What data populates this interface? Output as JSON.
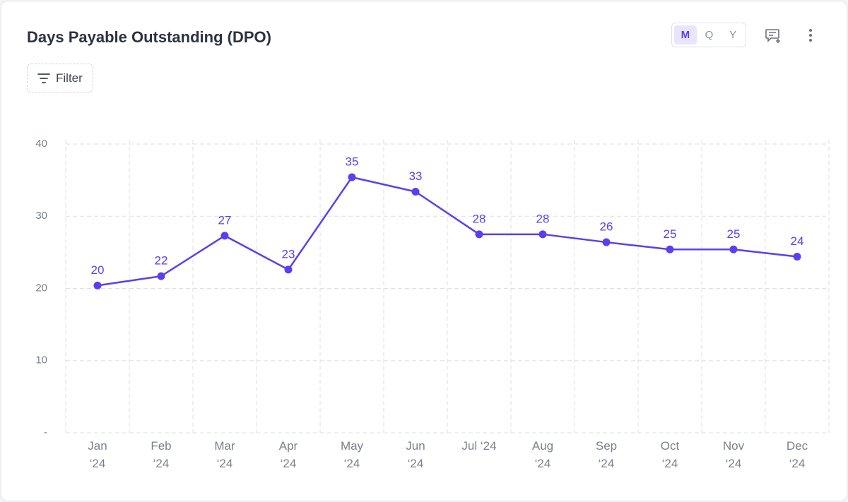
{
  "header": {
    "title": "Days Payable Outstanding (DPO)",
    "filter": "Filter",
    "periods": [
      "M",
      "Q",
      "Y"
    ]
  },
  "chart_data": {
    "type": "line",
    "categories": [
      "Jan ‘24",
      "Feb ‘24",
      "Mar ‘24",
      "Apr ‘24",
      "May ‘24",
      "Jun ‘24",
      "Jul ‘24",
      "Aug ‘24",
      "Sep ‘24",
      "Oct ‘24",
      "Nov ‘24",
      "Dec ‘24"
    ],
    "series": [
      {
        "name": "DPO",
        "color": "#5a3ff0",
        "values": [
          20.4,
          21.7,
          27.3,
          22.6,
          35.4,
          33.4,
          27.5,
          27.5,
          26.4,
          25.4,
          25.4,
          24.4
        ],
        "value_labels": [
          "20",
          "22",
          "27",
          "23",
          "35",
          "33",
          "28",
          "28",
          "26",
          "25",
          "25",
          "24"
        ]
      }
    ],
    "ylim": [
      0,
      40
    ],
    "yticks": [
      {
        "value": 0,
        "label": "-"
      },
      10,
      20,
      30,
      40
    ],
    "grid": true
  }
}
